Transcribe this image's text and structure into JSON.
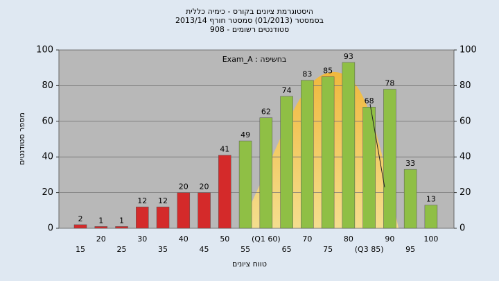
{
  "chart_data": {
    "type": "bar",
    "title": [
      "היסטוגרמת ציונים בקורס - כימיה כללית",
      "בסמסטר  (01/2013)  סמסטר חורף 2013/14",
      "סטודנטים רשומים - 908"
    ],
    "annotation": "בחשיפה : Exam_A",
    "x_label": "טווח ציונים",
    "y_label": "מספר סטודנטים",
    "categories": [
      "15",
      "20",
      "25",
      "30",
      "35",
      "40",
      "45",
      "50",
      "55",
      "(Q1 60)",
      "65",
      "70",
      "75",
      "80",
      "(Q3 85)",
      "90",
      "95",
      "100"
    ],
    "values": [
      2,
      1,
      1,
      12,
      12,
      20,
      20,
      41,
      49,
      62,
      74,
      83,
      85,
      93,
      68,
      78,
      33,
      13
    ],
    "colors": [
      "#d42a2a",
      "#d42a2a",
      "#d42a2a",
      "#d42a2a",
      "#d42a2a",
      "#d42a2a",
      "#d42a2a",
      "#d42a2a",
      "#8fbf45",
      "#8fbf45",
      "#8fbf45",
      "#8fbf45",
      "#8fbf45",
      "#8fbf45",
      "#8fbf45",
      "#8fbf45",
      "#8fbf45",
      "#8fbf45"
    ],
    "ylim": [
      0,
      100
    ],
    "yticks": [
      0,
      20,
      40,
      60,
      80,
      100
    ],
    "y2ticks": [
      0,
      20,
      40,
      60,
      80,
      100
    ],
    "grid": true
  }
}
